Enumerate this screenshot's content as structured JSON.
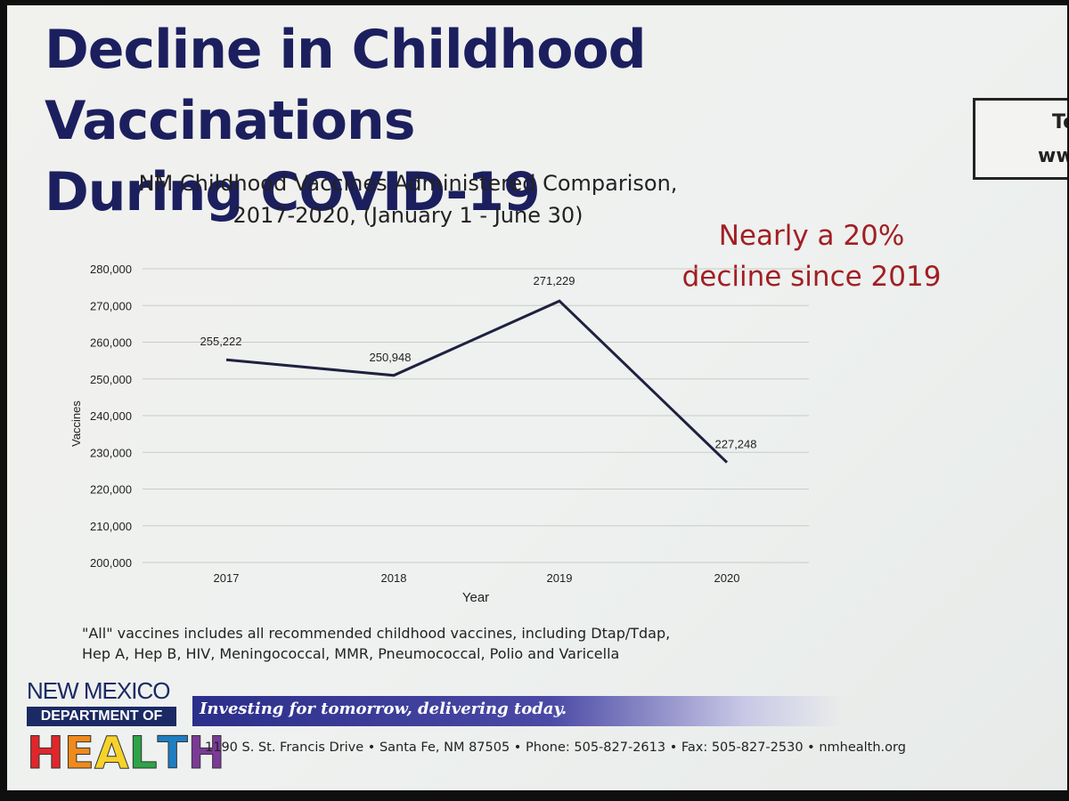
{
  "slide": {
    "title_line1": "Decline in Childhood Vaccinations",
    "title_line2": "During COVID-19",
    "callout_line1": "To",
    "callout_line2": "ww",
    "annotation_line1": "Nearly a 20%",
    "annotation_line2": "decline since 2019",
    "footnote_line1": "\"All\" vaccines includes all recommended childhood vaccines, including Dtap/Tdap,",
    "footnote_line2": "Hep A, Hep B, HIV,  Meningococcal, MMR, Pneumococcal, Polio and Varicella",
    "colors": {
      "title": "#1c1f5e",
      "annotation": "#a11f24",
      "line": "#1f2140"
    }
  },
  "chart_data": {
    "type": "line",
    "title_line1": "NM Childhood Vaccines Administered Comparison,",
    "title_line2": "2017-2020, (January 1 - June 30)",
    "xlabel": "Year",
    "ylabel": "Vaccines",
    "categories": [
      "2017",
      "2018",
      "2019",
      "2020"
    ],
    "series": [
      {
        "values": [
          255222,
          250948,
          271229,
          227248
        ]
      }
    ],
    "data_labels": [
      "255,222",
      "250,948",
      "271,229",
      "227,248"
    ],
    "ylim": [
      200000,
      280000
    ],
    "y_ticks": [
      200000,
      210000,
      220000,
      230000,
      240000,
      250000,
      260000,
      270000,
      280000
    ],
    "y_tick_labels": [
      "200,000",
      "210,000",
      "220,000",
      "230,000",
      "240,000",
      "250,000",
      "260,000",
      "270,000",
      "280,000"
    ],
    "grid": true
  },
  "footer": {
    "org_line1": "NEW MEXICO",
    "org_line2": "DEPARTMENT OF",
    "org_line3": "HEALTH",
    "health_colors": [
      "#e0262b",
      "#f08a1c",
      "#f6d22b",
      "#2da447",
      "#1f7dc2",
      "#7b3a96"
    ],
    "slogan": "Investing for tomorrow, delivering today.",
    "address": "1190 S. St. Francis Drive  •  Santa Fe, NM 87505  •  Phone: 505-827-2613  •  Fax: 505-827-2530  •  nmhealth.org"
  }
}
